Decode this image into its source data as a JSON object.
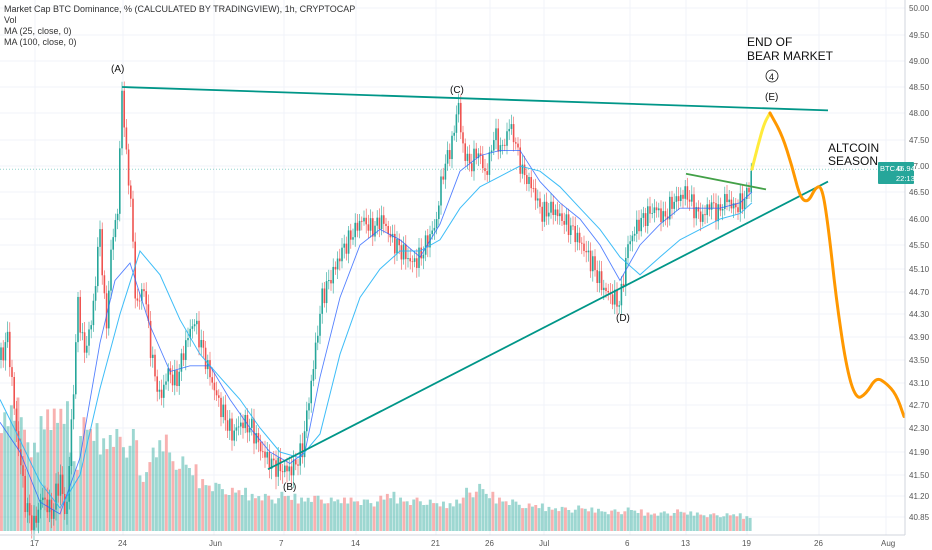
{
  "legend": {
    "title": "Market Cap BTC Dominance, % (CALCULATED BY TRADINGVIEW), 1h, CRYPTOCAP",
    "vol": "Vol",
    "ma25": "MA (25, close, 0)",
    "ma100": "MA (100, close, 0)"
  },
  "price_tag": {
    "symbol": "BTC.D",
    "value": "46.94",
    "countdown": "22:13"
  },
  "annotations": {
    "A": "(A)",
    "B": "(B)",
    "C": "(C)",
    "D": "(D)",
    "E": "(E)",
    "end_line1": "END OF",
    "end_line2": "BEAR MARKET",
    "wave": "4",
    "alt_line1": "ALTCOIN",
    "alt_line2": "SEASON"
  },
  "colors": {
    "candle_up": "#26a69a",
    "candle_down": "#ef5350",
    "ma25": "#2962ff",
    "ma100": "#29b6f6",
    "trendline": "#009688",
    "triangle_top": "#26a69a",
    "break_line": "#43a047",
    "projection_up": "#ffeb3b",
    "projection_down": "#ff9800",
    "tag_bg": "#26a69a"
  },
  "chart_data": {
    "type": "line",
    "y_ticks": [
      "50.00",
      "49.50",
      "49.00",
      "48.50",
      "48.00",
      "47.50",
      "47.00",
      "46.50",
      "46.00",
      "45.50",
      "45.10",
      "44.70",
      "44.30",
      "43.90",
      "43.50",
      "43.10",
      "42.70",
      "42.30",
      "41.90",
      "41.50",
      "41.20",
      "40.85"
    ],
    "x_ticks": [
      "17",
      "24",
      "Jun",
      "7",
      "14",
      "21",
      "26",
      "Jul",
      "6",
      "13",
      "19",
      "26",
      "Aug"
    ],
    "price_path": [
      [
        0,
        43.5
      ],
      [
        8,
        43.9
      ],
      [
        16,
        42.3
      ],
      [
        26,
        41.0
      ],
      [
        34,
        40.7
      ],
      [
        42,
        41.2
      ],
      [
        52,
        40.9
      ],
      [
        60,
        41.5
      ],
      [
        66,
        40.8
      ],
      [
        72,
        42.5
      ],
      [
        78,
        44.5
      ],
      [
        84,
        43.6
      ],
      [
        92,
        44.2
      ],
      [
        100,
        45.8
      ],
      [
        106,
        44.0
      ],
      [
        112,
        45.6
      ],
      [
        118,
        46.2
      ],
      [
        122,
        48.5
      ],
      [
        126,
        47.2
      ],
      [
        130,
        46.6
      ],
      [
        136,
        44.4
      ],
      [
        144,
        44.8
      ],
      [
        152,
        43.5
      ],
      [
        160,
        42.8
      ],
      [
        168,
        43.3
      ],
      [
        176,
        43.1
      ],
      [
        186,
        43.8
      ],
      [
        194,
        44.2
      ],
      [
        204,
        43.6
      ],
      [
        214,
        43.0
      ],
      [
        222,
        42.6
      ],
      [
        232,
        42.2
      ],
      [
        242,
        42.4
      ],
      [
        252,
        42.3
      ],
      [
        262,
        41.9
      ],
      [
        272,
        41.7
      ],
      [
        282,
        41.6
      ],
      [
        292,
        41.6
      ],
      [
        302,
        41.9
      ],
      [
        312,
        43.2
      ],
      [
        322,
        44.6
      ],
      [
        332,
        45.0
      ],
      [
        342,
        45.4
      ],
      [
        352,
        45.7
      ],
      [
        362,
        46.0
      ],
      [
        372,
        45.8
      ],
      [
        382,
        46.0
      ],
      [
        392,
        45.6
      ],
      [
        402,
        45.4
      ],
      [
        412,
        45.2
      ],
      [
        420,
        45.3
      ],
      [
        428,
        45.6
      ],
      [
        436,
        45.9
      ],
      [
        442,
        46.8
      ],
      [
        448,
        47.2
      ],
      [
        454,
        47.6
      ],
      [
        458,
        48.3
      ],
      [
        462,
        47.4
      ],
      [
        470,
        47.0
      ],
      [
        478,
        47.3
      ],
      [
        486,
        46.8
      ],
      [
        494,
        47.6
      ],
      [
        502,
        47.3
      ],
      [
        510,
        47.8
      ],
      [
        516,
        47.4
      ],
      [
        522,
        46.9
      ],
      [
        532,
        46.6
      ],
      [
        542,
        46.1
      ],
      [
        552,
        46.2
      ],
      [
        562,
        46.0
      ],
      [
        572,
        45.8
      ],
      [
        582,
        45.5
      ],
      [
        592,
        45.2
      ],
      [
        602,
        44.8
      ],
      [
        612,
        44.6
      ],
      [
        620,
        44.5
      ],
      [
        628,
        45.5
      ],
      [
        638,
        45.9
      ],
      [
        648,
        46.1
      ],
      [
        656,
        46.2
      ],
      [
        664,
        46.0
      ],
      [
        672,
        46.3
      ],
      [
        680,
        46.4
      ],
      [
        686,
        46.5
      ],
      [
        694,
        46.2
      ],
      [
        702,
        46.0
      ],
      [
        710,
        46.3
      ],
      [
        718,
        46.1
      ],
      [
        726,
        46.4
      ],
      [
        734,
        46.2
      ],
      [
        742,
        46.3
      ],
      [
        748,
        46.5
      ],
      [
        752,
        46.94
      ]
    ],
    "projection": [
      {
        "segment": "up",
        "points": [
          [
            752,
            46.94
          ],
          [
            758,
            47.4
          ],
          [
            764,
            47.8
          ],
          [
            770,
            48.0
          ]
        ]
      },
      {
        "segment": "down",
        "points": [
          [
            770,
            48.0
          ],
          [
            782,
            47.6
          ],
          [
            792,
            47.0
          ],
          [
            800,
            46.4
          ],
          [
            808,
            46.3
          ],
          [
            816,
            46.6
          ],
          [
            822,
            46.6
          ],
          [
            828,
            45.9
          ],
          [
            836,
            44.6
          ],
          [
            846,
            43.4
          ],
          [
            856,
            42.8
          ],
          [
            866,
            42.9
          ],
          [
            876,
            43.2
          ],
          [
            886,
            43.1
          ],
          [
            896,
            42.9
          ],
          [
            904,
            42.5
          ]
        ]
      }
    ],
    "ma25_path": [
      [
        0,
        42.4
      ],
      [
        20,
        41.9
      ],
      [
        40,
        41.1
      ],
      [
        60,
        40.9
      ],
      [
        80,
        41.8
      ],
      [
        100,
        43.8
      ],
      [
        115,
        44.9
      ],
      [
        130,
        45.2
      ],
      [
        150,
        44.1
      ],
      [
        170,
        43.3
      ],
      [
        190,
        43.4
      ],
      [
        210,
        43.4
      ],
      [
        230,
        42.8
      ],
      [
        250,
        42.3
      ],
      [
        270,
        41.9
      ],
      [
        290,
        41.7
      ],
      [
        305,
        41.9
      ],
      [
        320,
        43.2
      ],
      [
        340,
        44.6
      ],
      [
        360,
        45.5
      ],
      [
        380,
        45.8
      ],
      [
        400,
        45.6
      ],
      [
        420,
        45.3
      ],
      [
        440,
        45.9
      ],
      [
        460,
        46.9
      ],
      [
        480,
        47.2
      ],
      [
        500,
        47.3
      ],
      [
        520,
        47.3
      ],
      [
        540,
        46.7
      ],
      [
        560,
        46.3
      ],
      [
        580,
        46.0
      ],
      [
        600,
        45.5
      ],
      [
        620,
        44.9
      ],
      [
        640,
        45.5
      ],
      [
        660,
        45.9
      ],
      [
        680,
        46.2
      ],
      [
        700,
        46.2
      ],
      [
        720,
        46.2
      ],
      [
        740,
        46.3
      ],
      [
        752,
        46.5
      ]
    ],
    "ma100_path": [
      [
        0,
        42.8
      ],
      [
        20,
        42.1
      ],
      [
        40,
        41.4
      ],
      [
        60,
        41.0
      ],
      [
        80,
        41.5
      ],
      [
        100,
        43.0
      ],
      [
        120,
        44.3
      ],
      [
        140,
        45.4
      ],
      [
        160,
        45.0
      ],
      [
        180,
        44.2
      ],
      [
        200,
        43.6
      ],
      [
        220,
        43.2
      ],
      [
        240,
        42.8
      ],
      [
        260,
        42.3
      ],
      [
        280,
        41.9
      ],
      [
        300,
        41.8
      ],
      [
        320,
        42.2
      ],
      [
        340,
        43.6
      ],
      [
        360,
        44.6
      ],
      [
        380,
        45.1
      ],
      [
        400,
        45.4
      ],
      [
        420,
        45.4
      ],
      [
        440,
        45.6
      ],
      [
        460,
        46.2
      ],
      [
        480,
        46.6
      ],
      [
        500,
        46.8
      ],
      [
        520,
        47.0
      ],
      [
        540,
        46.9
      ],
      [
        560,
        46.6
      ],
      [
        580,
        46.2
      ],
      [
        600,
        45.8
      ],
      [
        620,
        45.3
      ],
      [
        640,
        45.0
      ],
      [
        660,
        45.3
      ],
      [
        680,
        45.6
      ],
      [
        700,
        45.8
      ],
      [
        720,
        46.0
      ],
      [
        740,
        46.1
      ],
      [
        752,
        46.3
      ]
    ],
    "trendlines": [
      {
        "name": "resistance",
        "from": [
          122,
          48.5
        ],
        "to": [
          828,
          48.05
        ]
      },
      {
        "name": "support",
        "from": [
          268,
          41.6
        ],
        "to": [
          828,
          46.7
        ]
      },
      {
        "name": "breakout",
        "from": [
          686,
          46.85
        ],
        "to": [
          766,
          46.55
        ]
      }
    ],
    "volume": {
      "levels": [
        0.64,
        0.72,
        0.58,
        0.45,
        0.62,
        0.66,
        0.7,
        0.4,
        0.58,
        0.55,
        0.5,
        0.55,
        0.48,
        0.52,
        0.3,
        0.45,
        0.52,
        0.4,
        0.38,
        0.34,
        0.28,
        0.26,
        0.24,
        0.22,
        0.22,
        0.2,
        0.2,
        0.18,
        0.2,
        0.19,
        0.18,
        0.19,
        0.18,
        0.17,
        0.17,
        0.18,
        0.17,
        0.16,
        0.18,
        0.2,
        0.18,
        0.17,
        0.17,
        0.16,
        0.15,
        0.15,
        0.18,
        0.22,
        0.24,
        0.2,
        0.18,
        0.17,
        0.15,
        0.14,
        0.14,
        0.13,
        0.13,
        0.12,
        0.13,
        0.12,
        0.12,
        0.11,
        0.11,
        0.12,
        0.11,
        0.1,
        0.1,
        0.1,
        0.11,
        0.1,
        0.1,
        0.09,
        0.09,
        0.09,
        0.09,
        0.08
      ]
    },
    "axis_range": {
      "y_min": 40.6,
      "y_max": 50.2
    }
  }
}
